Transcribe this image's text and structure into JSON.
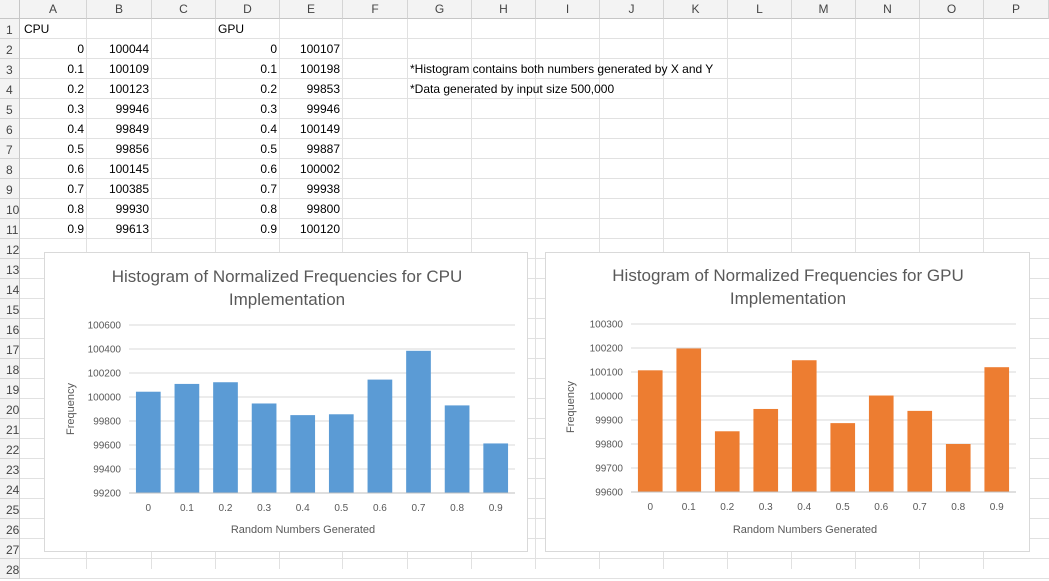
{
  "columns": [
    "A",
    "B",
    "C",
    "D",
    "E",
    "F",
    "G",
    "H",
    "I",
    "J",
    "K",
    "L",
    "M",
    "N",
    "O",
    "P"
  ],
  "rows": [
    "1",
    "2",
    "3",
    "4",
    "5",
    "6",
    "7",
    "8",
    "9",
    "10",
    "11",
    "12",
    "13",
    "14",
    "15",
    "16",
    "17",
    "18",
    "19",
    "20",
    "21",
    "22",
    "23",
    "24",
    "25",
    "26",
    "27",
    "28"
  ],
  "cpu_table": {
    "header": "CPU",
    "x": [
      "0",
      "0.1",
      "0.2",
      "0.3",
      "0.4",
      "0.5",
      "0.6",
      "0.7",
      "0.8",
      "0.9"
    ],
    "freq": [
      "100044",
      "100109",
      "100123",
      "99946",
      "99849",
      "99856",
      "100145",
      "100385",
      "99930",
      "99613"
    ]
  },
  "gpu_table": {
    "header": "GPU",
    "x": [
      "0",
      "0.1",
      "0.2",
      "0.3",
      "0.4",
      "0.5",
      "0.6",
      "0.7",
      "0.8",
      "0.9"
    ],
    "freq": [
      "100107",
      "100198",
      "99853",
      "99946",
      "100149",
      "99887",
      "100002",
      "99938",
      "99800",
      "100120"
    ]
  },
  "notes": {
    "note1": "*Histogram contains both numbers generated by X and Y",
    "note2": "*Data generated by input size 500,000"
  },
  "chart_data": [
    {
      "type": "bar",
      "title_line1": "Histogram of Normalized Frequencies for CPU",
      "title_line2": "Implementation",
      "xlabel": "Random Numbers Generated",
      "ylabel": "Frequency",
      "categories": [
        "0",
        "0.1",
        "0.2",
        "0.3",
        "0.4",
        "0.5",
        "0.6",
        "0.7",
        "0.8",
        "0.9"
      ],
      "values": [
        100044,
        100109,
        100123,
        99946,
        99849,
        99856,
        100145,
        100385,
        99930,
        99613
      ],
      "ylim": [
        99200,
        100600
      ],
      "yticks": [
        99200,
        99400,
        99600,
        99800,
        100000,
        100200,
        100400,
        100600
      ],
      "color": "#5b9bd5",
      "grid": true
    },
    {
      "type": "bar",
      "title_line1": "Histogram of Normalized Frequencies for GPU",
      "title_line2": "Implementation",
      "xlabel": "Random Numbers Generated",
      "ylabel": "Frequency",
      "categories": [
        "0",
        "0.1",
        "0.2",
        "0.3",
        "0.4",
        "0.5",
        "0.6",
        "0.7",
        "0.8",
        "0.9"
      ],
      "values": [
        100107,
        100198,
        99853,
        99946,
        100149,
        99887,
        100002,
        99938,
        99800,
        100120
      ],
      "ylim": [
        99600,
        100300
      ],
      "yticks": [
        99600,
        99700,
        99800,
        99900,
        100000,
        100100,
        100200,
        100300
      ],
      "color": "#ed7d31",
      "grid": true
    }
  ]
}
